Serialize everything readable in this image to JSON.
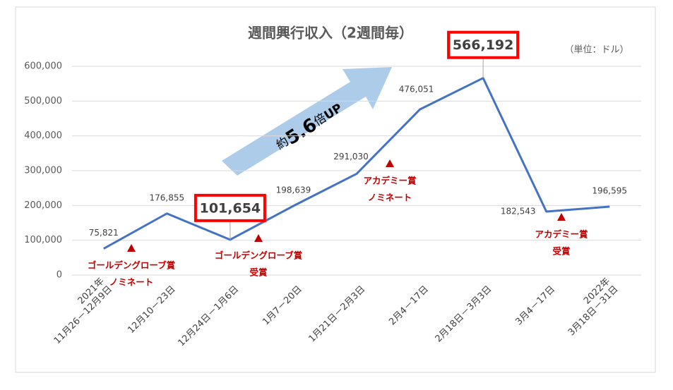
{
  "chart_data": {
    "type": "line",
    "title": "週間興行収入（2週間毎）",
    "unit_label": "（単位：ドル）",
    "categories": [
      [
        "2021年",
        "11月26－12月9日"
      ],
      [
        "12月10－23日"
      ],
      [
        "12月24日－1月6日"
      ],
      [
        "1月7－20日"
      ],
      [
        "1月21日－2月3日"
      ],
      [
        "2月4－17日"
      ],
      [
        "2月18日－3月3日"
      ],
      [
        "3月4－17日"
      ],
      [
        "2022年",
        "3月18日－31日"
      ]
    ],
    "series": [
      {
        "name": "週間興行収入",
        "color": "#4472c4",
        "values": [
          75821,
          176855,
          101654,
          198639,
          291030,
          476051,
          566192,
          182543,
          196595
        ],
        "value_labels": [
          "75,821",
          "176,855",
          "101,654",
          "198,639",
          "291,030",
          "476,051",
          "566,192",
          "182,543",
          "196,595"
        ]
      }
    ],
    "highlight": [
      2,
      6
    ],
    "ylim": [
      0,
      600000
    ],
    "yticks": [
      0,
      {
        "value": 100000,
        "label": "100,000"
      },
      {
        "value": 200000,
        "label": "200,000"
      },
      {
        "value": 300000,
        "label": "300,000"
      },
      {
        "value": 400000,
        "label": "400,000"
      },
      {
        "value": 500000,
        "label": "500,000"
      },
      {
        "value": 600000,
        "label": "600,000"
      }
    ],
    "grid": true,
    "annotations": [
      [
        "ゴールデングローブ賞",
        "ノミネート"
      ],
      [
        "ゴールデングローブ賞",
        "受賞"
      ],
      [
        "アカデミー賞",
        "ノミネート"
      ],
      [
        "アカデミー賞",
        "受賞"
      ]
    ],
    "growth_label": [
      "約",
      "5.6",
      "倍",
      "UP"
    ]
  }
}
